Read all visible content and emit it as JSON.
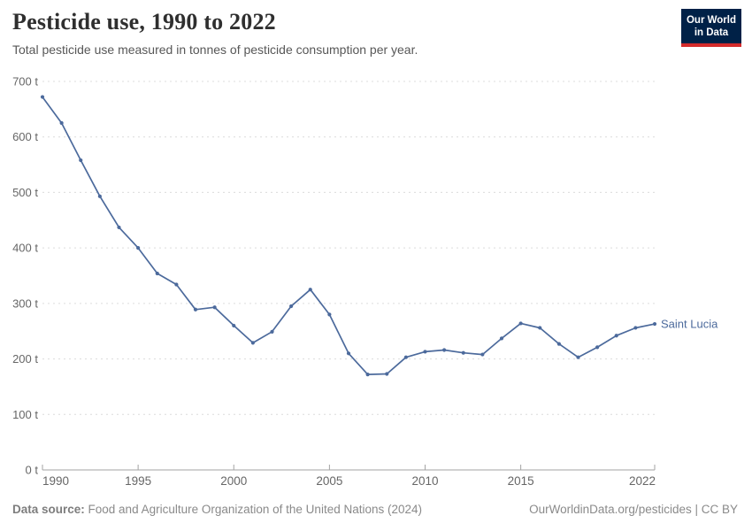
{
  "header": {
    "title": "Pesticide use, 1990 to 2022",
    "subtitle": "Total pesticide use measured in tonnes of pesticide consumption per year.",
    "logo": {
      "line1": "Our World",
      "line2": "in Data"
    }
  },
  "chart_data": {
    "type": "line",
    "title": "Pesticide use, 1990 to 2022",
    "xlabel": "",
    "ylabel": "",
    "xlim": [
      1990,
      2022
    ],
    "ylim": [
      0,
      700
    ],
    "grid": "horizontal-dashed",
    "legend_position": "end-of-line-label",
    "x_ticks": [
      1990,
      1995,
      2000,
      2005,
      2010,
      2015,
      2022
    ],
    "y_ticks": [
      0,
      100,
      200,
      300,
      400,
      500,
      600,
      700
    ],
    "y_tick_suffix": " t",
    "x": [
      1990,
      1991,
      1992,
      1993,
      1994,
      1995,
      1996,
      1997,
      1998,
      1999,
      2000,
      2001,
      2002,
      2003,
      2004,
      2005,
      2006,
      2007,
      2008,
      2009,
      2010,
      2011,
      2012,
      2013,
      2014,
      2015,
      2016,
      2017,
      2018,
      2019,
      2020,
      2021,
      2022
    ],
    "series": [
      {
        "name": "Saint Lucia",
        "color": "#4C6A9C",
        "values": [
          672,
          625,
          558,
          493,
          437,
          400,
          354,
          334,
          289,
          293,
          260,
          229,
          249,
          295,
          325,
          280,
          210,
          172,
          173,
          203,
          213,
          216,
          211,
          208,
          237,
          264,
          256,
          227,
          203,
          221,
          242,
          256,
          263
        ]
      }
    ]
  },
  "footer": {
    "source_label": "Data source:",
    "source_text": " Food and Agriculture Organization of the United Nations (2024)",
    "credit": "OurWorldinData.org/pesticides | CC BY"
  },
  "colors": {
    "line": "#4C6A9C",
    "entity_label": "#4C6A9C",
    "grid": "#dcdcdc",
    "axis": "#a3a3a3",
    "tick_label": "#666666",
    "title": "#2f2f2f",
    "subtitle": "#575757",
    "footer": "#8a8a8a",
    "logo_bg": "#002147",
    "logo_accent": "#d42b2b"
  }
}
